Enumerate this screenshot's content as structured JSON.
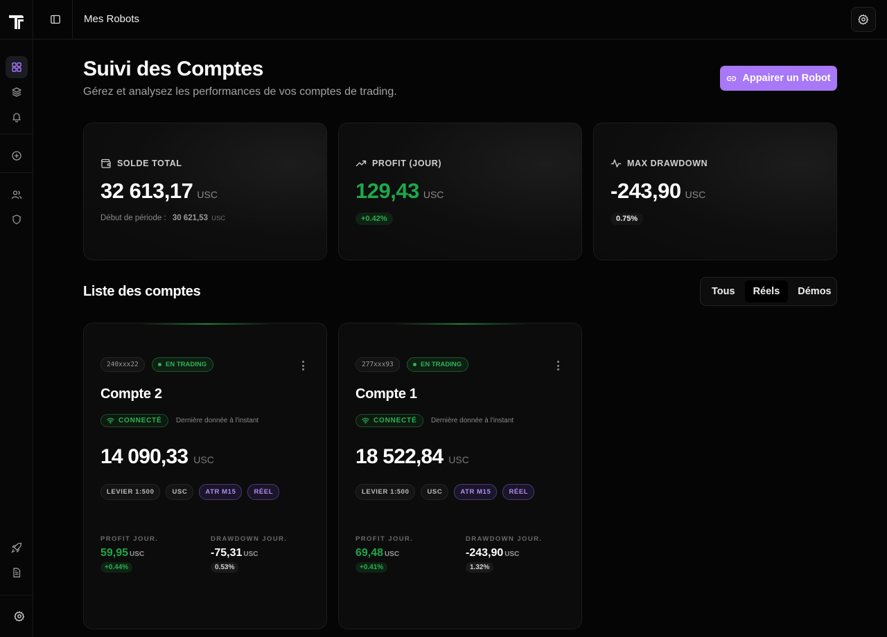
{
  "header": {
    "breadcrumb": "Mes Robots"
  },
  "sidebar": {
    "items": [
      {
        "name": "dashboard",
        "icon": "layout-grid-icon",
        "active": true
      },
      {
        "name": "layers",
        "icon": "layers-icon",
        "active": false
      },
      {
        "name": "notifications",
        "icon": "bell-icon",
        "active": false
      },
      {
        "name": "add",
        "icon": "plus-circle-icon",
        "active": false
      },
      {
        "name": "users",
        "icon": "users-icon",
        "active": false
      },
      {
        "name": "security",
        "icon": "shield-icon",
        "active": false
      },
      {
        "name": "launch",
        "icon": "rocket-icon",
        "active": false
      },
      {
        "name": "documents",
        "icon": "file-text-icon",
        "active": false
      },
      {
        "name": "settings",
        "icon": "gear-icon",
        "active": false
      }
    ]
  },
  "page": {
    "title": "Suivi des Comptes",
    "subtitle": "Gérez et analysez les performances de vos comptes de trading.",
    "pair_button": "Appairer un Robot"
  },
  "stats": {
    "balance": {
      "label": "SOLDE TOTAL",
      "value": "32 613,17",
      "unit": "USC",
      "sub_label": "Début de période :",
      "sub_value": "30 621,53",
      "sub_unit": "USC"
    },
    "profit": {
      "label": "PROFIT (JOUR)",
      "value": "129,43",
      "unit": "USC",
      "badge": "+0.42%"
    },
    "drawdown": {
      "label": "MAX DRAWDOWN",
      "value": "-243,90",
      "unit": "USC",
      "badge": "0.75%"
    }
  },
  "accounts_section": {
    "title": "Liste des comptes",
    "filters": [
      "Tous",
      "Réels",
      "Démos"
    ],
    "active_filter": "Réels"
  },
  "accounts": [
    {
      "id": "240xxx22",
      "status": "EN TRADING",
      "name": "Compte 2",
      "connection": "CONNECTÉ",
      "last_data": "Dernière donnée à l'instant",
      "balance": "14 090,33",
      "unit": "USC",
      "tags": [
        "LEVIER 1:500",
        "USC",
        "ATR M15",
        "RÉEL"
      ],
      "profit_label": "PROFIT JOUR.",
      "profit_value": "59,95",
      "profit_unit": "USC",
      "profit_pct": "+0.44%",
      "drawdown_label": "DRAWDOWN JOUR.",
      "drawdown_value": "-75,31",
      "drawdown_unit": "USC",
      "drawdown_pct": "0.53%"
    },
    {
      "id": "277xxx93",
      "status": "EN TRADING",
      "name": "Compte 1",
      "connection": "CONNECTÉ",
      "last_data": "Dernière donnée à l'instant",
      "balance": "18 522,84",
      "unit": "USC",
      "tags": [
        "LEVIER 1:500",
        "USC",
        "ATR M15",
        "RÉEL"
      ],
      "profit_label": "PROFIT JOUR.",
      "profit_value": "69,48",
      "profit_unit": "USC",
      "profit_pct": "+0.41%",
      "drawdown_label": "DRAWDOWN JOUR.",
      "drawdown_value": "-243,90",
      "drawdown_unit": "USC",
      "drawdown_pct": "1.32%"
    }
  ],
  "colors": {
    "accent": "#a878f7",
    "positive": "#1fa84a",
    "background": "#050505",
    "card": "#0c0c0c"
  }
}
